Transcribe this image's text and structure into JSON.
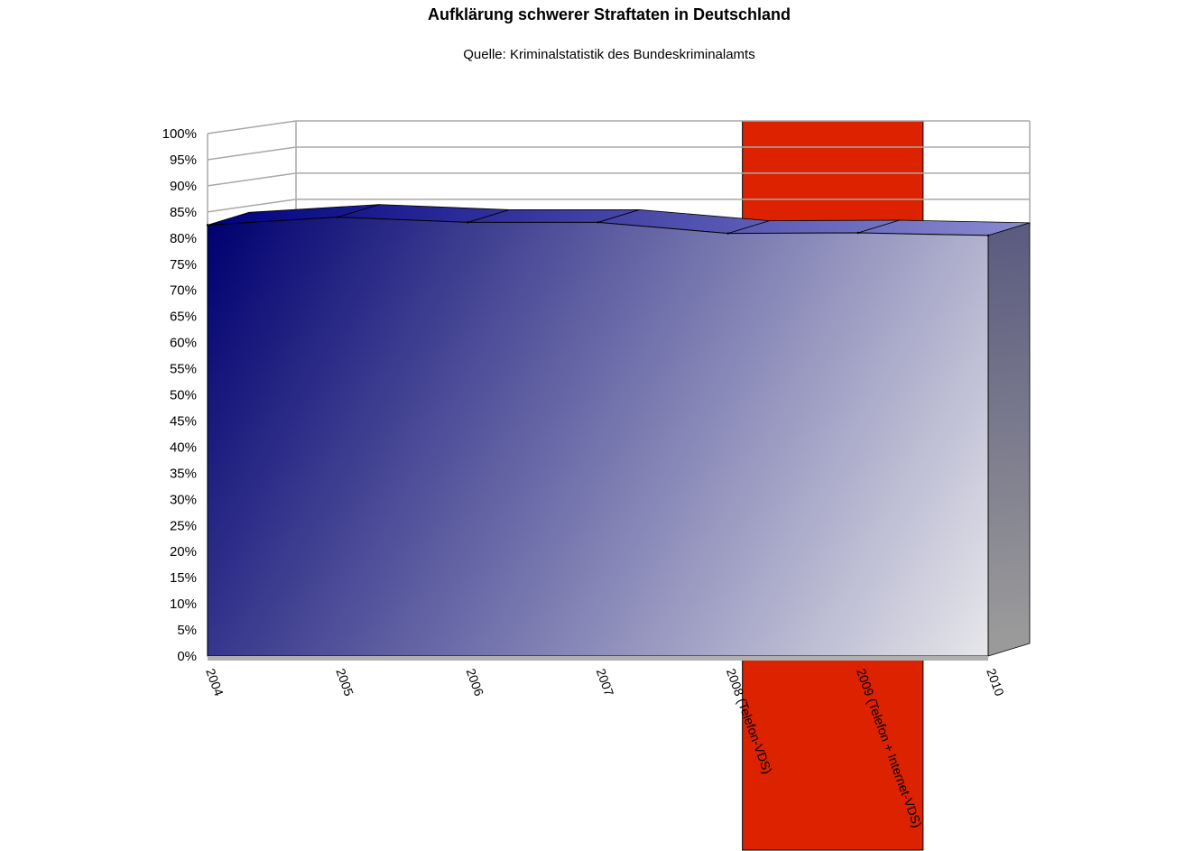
{
  "chart_data": {
    "type": "area",
    "title": "Aufklärung schwerer Straftaten in Deutschland",
    "subtitle": "Quelle: Kriminalstatistik des Bundeskriminalamts",
    "categories": [
      "2004",
      "2005",
      "2006",
      "2007",
      "2008 (Telefon-VDS)",
      "2009 (Telefon + Internet-VDS)",
      "2010"
    ],
    "series": [
      {
        "values": [
          82.5,
          84.0,
          83.0,
          83.0,
          80.9,
          81.0,
          80.5
        ]
      }
    ],
    "ylim": [
      0,
      100
    ],
    "yticks": [
      "0%",
      "5%",
      "10%",
      "15%",
      "20%",
      "25%",
      "30%",
      "35%",
      "40%",
      "45%",
      "50%",
      "55%",
      "60%",
      "65%",
      "70%",
      "75%",
      "80%",
      "85%",
      "90%",
      "95%",
      "100%"
    ],
    "grid": true,
    "highlight_band": {
      "from_category": "2008 (Telefon-VDS)",
      "to_category": "2009 (Telefon + Internet-VDS)",
      "color": "#dd2200"
    },
    "colors": {
      "series_dark": "#000070",
      "series_light": "#e6e6ea",
      "grid": "#a8a8a8",
      "highlight": "#dd2200"
    }
  }
}
